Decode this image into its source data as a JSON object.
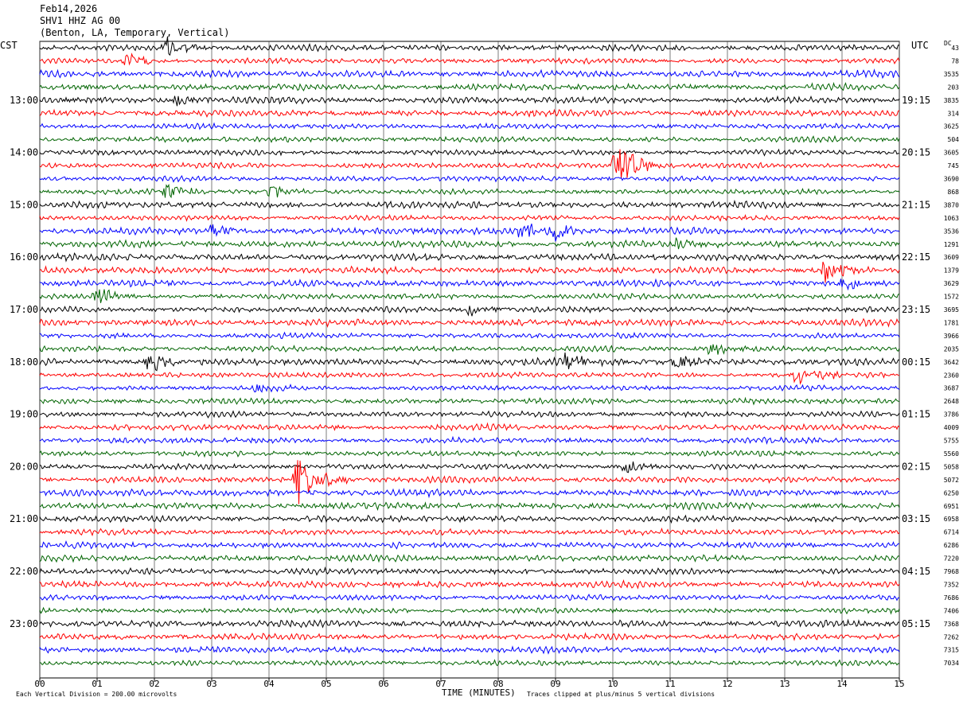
{
  "header": {
    "date": "Feb14,2026",
    "station": "SHV1 HHZ AG 00",
    "location": "(Benton, LA, Temporary, Vertical)"
  },
  "left_tz": "CST",
  "right_tz": "UTC",
  "dc_label": "DC",
  "footer": {
    "scale": "Each Vertical Division =  200.00 microvolts",
    "xlabel": "TIME (MINUTES)",
    "clip": "Traces clipped at plus/minus 5 vertical divisions"
  },
  "chart_data": {
    "type": "line",
    "title": "SHV1 HHZ AG 00",
    "xlabel": "TIME (MINUTES)",
    "xlim": [
      0,
      15
    ],
    "x_ticks": [
      "00",
      "01",
      "02",
      "03",
      "04",
      "05",
      "06",
      "07",
      "08",
      "09",
      "10",
      "11",
      "12",
      "13",
      "14",
      "15"
    ],
    "trace_colors": [
      "#000000",
      "#ff0000",
      "#0000ff",
      "#006400"
    ],
    "traces_per_hour": 4,
    "num_traces": 48,
    "left_hour_labels": [
      "13:00",
      "14:00",
      "15:00",
      "16:00",
      "17:00",
      "18:00",
      "19:00",
      "20:00",
      "21:00",
      "22:00",
      "23:00"
    ],
    "right_hour_labels": [
      "19:15",
      "20:15",
      "21:15",
      "22:15",
      "23:15",
      "00:15",
      "01:15",
      "02:15",
      "03:15",
      "04:15",
      "05:15"
    ],
    "dc_offsets": [
      "43",
      "78",
      "3535",
      "203",
      "3835",
      "314",
      "3625",
      "504",
      "3605",
      "745",
      "3690",
      "868",
      "3870",
      "1063",
      "3536",
      "1291",
      "3609",
      "1379",
      "3629",
      "1572",
      "3695",
      "1781",
      "3966",
      "2035",
      "3642",
      "2360",
      "3687",
      "2648",
      "3786",
      "4009",
      "5755",
      "5560",
      "5058",
      "5072",
      "6250",
      "6951",
      "6958",
      "6714",
      "6286",
      "7220",
      "7968",
      "7352",
      "7686",
      "7406",
      "7368",
      "7262",
      "7315",
      "7034"
    ],
    "events": [
      {
        "trace": 0,
        "x": 2.2,
        "amp": 1.6
      },
      {
        "trace": 1,
        "x": 1.5,
        "amp": 1.0
      },
      {
        "trace": 4,
        "x": 2.4,
        "amp": 0.9
      },
      {
        "trace": 9,
        "x": 10.05,
        "amp": 4.0
      },
      {
        "trace": 11,
        "x": 2.2,
        "amp": 1.3
      },
      {
        "trace": 11,
        "x": 4.0,
        "amp": 1.0
      },
      {
        "trace": 14,
        "x": 8.4,
        "amp": 1.2
      },
      {
        "trace": 14,
        "x": 9.0,
        "amp": 1.4
      },
      {
        "trace": 14,
        "x": 3.0,
        "amp": 1.0
      },
      {
        "trace": 15,
        "x": 11.1,
        "amp": 1.0
      },
      {
        "trace": 17,
        "x": 13.7,
        "amp": 1.6
      },
      {
        "trace": 18,
        "x": 14.0,
        "amp": 0.9
      },
      {
        "trace": 19,
        "x": 1.0,
        "amp": 1.4
      },
      {
        "trace": 20,
        "x": 7.5,
        "amp": 0.8
      },
      {
        "trace": 23,
        "x": 11.7,
        "amp": 1.3
      },
      {
        "trace": 24,
        "x": 1.9,
        "amp": 1.6
      },
      {
        "trace": 24,
        "x": 9.2,
        "amp": 1.1
      },
      {
        "trace": 24,
        "x": 11.1,
        "amp": 1.2
      },
      {
        "trace": 25,
        "x": 13.2,
        "amp": 1.3
      },
      {
        "trace": 26,
        "x": 3.8,
        "amp": 0.8
      },
      {
        "trace": 33,
        "x": 4.5,
        "amp": 3.6
      },
      {
        "trace": 32,
        "x": 10.2,
        "amp": 0.9
      }
    ]
  }
}
